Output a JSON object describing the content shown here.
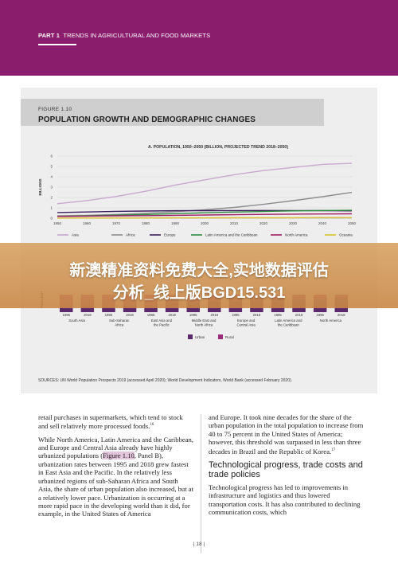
{
  "header": {
    "part": "PART 1",
    "title": "TRENDS IN AGRICULTURAL AND FOOD MARKETS"
  },
  "figure": {
    "label": "FIGURE 1.10",
    "title": "POPULATION GROWTH AND DEMOGRAPHIC CHANGES",
    "sources": "SOURCES: UN World Population Prospects 2019 (accessed April 2020); World Development Indicators, World Bank (accessed February 2020)."
  },
  "chart_data": [
    {
      "type": "line",
      "title": "A. POPULATION, 1950–2050 (BILLION, PROJECTED TREND 2018–2050)",
      "ylabel": "BILLIONS",
      "ylim": [
        0,
        6
      ],
      "yticks": [
        "0",
        "1",
        "2",
        "3",
        "4",
        "5",
        "6"
      ],
      "x": [
        1950,
        1960,
        1970,
        1980,
        1990,
        2000,
        2010,
        2020,
        2030,
        2040,
        2050
      ],
      "xticks": [
        "1950",
        "1960",
        "1970",
        "1980",
        "1990",
        "2000",
        "2010",
        "2020",
        "2030",
        "2040",
        "2050"
      ],
      "legend_position": "bottom",
      "series": [
        {
          "name": "Asia",
          "color": "#c9a8cf",
          "values": [
            1.4,
            1.7,
            2.1,
            2.6,
            3.2,
            3.7,
            4.2,
            4.6,
            4.9,
            5.2,
            5.3
          ]
        },
        {
          "name": "Africa",
          "color": "#8c8c8c",
          "values": [
            0.23,
            0.28,
            0.36,
            0.48,
            0.63,
            0.81,
            1.04,
            1.34,
            1.69,
            2.08,
            2.49
          ]
        },
        {
          "name": "Europe",
          "color": "#3a1f5c",
          "values": [
            0.55,
            0.6,
            0.66,
            0.69,
            0.72,
            0.73,
            0.74,
            0.75,
            0.74,
            0.73,
            0.71
          ]
        },
        {
          "name": "Latin America and the Caribbean",
          "color": "#2e8b3e",
          "values": [
            0.17,
            0.22,
            0.29,
            0.36,
            0.44,
            0.52,
            0.59,
            0.65,
            0.71,
            0.74,
            0.76
          ]
        },
        {
          "name": "North America",
          "color": "#9e1f63",
          "values": [
            0.17,
            0.2,
            0.23,
            0.25,
            0.28,
            0.31,
            0.34,
            0.37,
            0.39,
            0.41,
            0.42
          ]
        },
        {
          "name": "Oceania",
          "color": "#d9c12a",
          "values": [
            0.01,
            0.02,
            0.02,
            0.02,
            0.03,
            0.03,
            0.04,
            0.04,
            0.05,
            0.06,
            0.06
          ]
        }
      ]
    },
    {
      "type": "bar",
      "ylabel": "PERCENT",
      "ylim": [
        0,
        100
      ],
      "legend_position": "bottom",
      "categories": [
        "1995",
        "2018",
        "1995",
        "2018",
        "1995",
        "2018",
        "1995",
        "2018",
        "1995",
        "2018",
        "1995",
        "2018",
        "1995",
        "2018"
      ],
      "groups": [
        "South Asia",
        "Sub-Saharan Africa",
        "East Asia and the Pacific",
        "Middle East and North Africa",
        "Europe and Central Asia",
        "Latin America and the Caribbean",
        "North America"
      ],
      "series": [
        {
          "name": "Urban",
          "color": "#5a2a6a",
          "values": [
            26,
            34,
            31,
            40,
            37,
            58,
            56,
            64,
            65,
            71,
            73,
            81,
            77,
            82
          ]
        },
        {
          "name": "Rural",
          "color": "#9a2d7a",
          "values": [
            74,
            66,
            69,
            60,
            63,
            42,
            44,
            36,
            35,
            29,
            27,
            19,
            23,
            18
          ]
        }
      ]
    }
  ],
  "banner": {
    "line1": "新澳精准资料免费大全,实地数据评估",
    "line2": "分析_线上版BGD15.531"
  },
  "body": {
    "left": {
      "p1": "retail purchases in supermarkets, which tend to stock and sell relatively more processed foods.",
      "p1_ref": "16",
      "p2_a": "While North America, Latin America and the Caribbean, and Europe and Central Asia already have highly urbanized populations (",
      "p2_link": "Figure 1.10",
      "p2_b": ", Panel B), urbanization rates between 1995 and 2018 grew fastest in East Asia and the Pacific. In the relatively less urbanized regions of sub-Saharan Africa and South Asia, the share of urban population also increased, but at a relatively lower pace. Urbanization is occurring at a more rapid pace in the developing world than it did, for example, in the United States of America"
    },
    "right": {
      "p1": "and Europe. It took nine decades for the share of the urban population in the total population to increase from 40 to 75 percent in the United States of America; however, this threshold was surpassed in less than three decades in Brazil and the Republic of Korea.",
      "p1_ref": "17",
      "heading": "Technological progress, trade costs and trade policies",
      "p2": "Technological progress has led to improvements in infrastructure and logistics and thus lowered transportation costs. It has also contributed to declining communication costs, which"
    }
  },
  "page_number": "| 18 |"
}
